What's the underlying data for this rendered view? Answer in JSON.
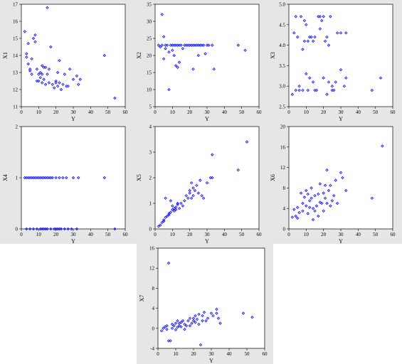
{
  "chart_data": [
    {
      "type": "scatter",
      "xlabel": "Y",
      "ylabel": "X1",
      "xlim": [
        0,
        60
      ],
      "ylim": [
        11,
        17
      ],
      "xticks": [
        0,
        10,
        20,
        30,
        40,
        50,
        60
      ],
      "yticks": [
        11,
        12,
        13,
        14,
        15,
        16,
        17
      ],
      "points": [
        [
          2,
          15.4
        ],
        [
          3,
          14.1
        ],
        [
          3,
          13.9
        ],
        [
          4,
          13.5
        ],
        [
          4,
          14.7
        ],
        [
          5,
          13.2
        ],
        [
          5,
          13.1
        ],
        [
          6,
          12.9
        ],
        [
          7,
          15
        ],
        [
          8,
          14.8
        ],
        [
          8,
          15.2
        ],
        [
          9,
          13.2
        ],
        [
          10,
          12.9
        ],
        [
          10,
          12.5
        ],
        [
          11,
          13
        ],
        [
          11,
          12.7
        ],
        [
          12,
          12.4
        ],
        [
          12,
          12.9
        ],
        [
          13,
          13.3
        ],
        [
          13,
          12.6
        ],
        [
          14,
          13.3
        ],
        [
          14,
          12.3
        ],
        [
          15,
          16.8
        ],
        [
          15,
          12.9
        ],
        [
          16,
          13.2
        ],
        [
          16,
          12.4
        ],
        [
          17,
          14.5
        ],
        [
          18,
          12.3
        ],
        [
          19,
          12.1
        ],
        [
          20,
          12.5
        ],
        [
          20,
          12.4
        ],
        [
          21,
          12.2
        ],
        [
          21,
          13
        ],
        [
          22,
          12.4
        ],
        [
          22,
          13.7
        ],
        [
          23,
          12
        ],
        [
          24,
          12.3
        ],
        [
          25,
          12.9
        ],
        [
          26,
          12.2
        ],
        [
          27,
          12.2
        ],
        [
          28,
          13.2
        ],
        [
          30,
          12.6
        ],
        [
          32,
          12.8
        ],
        [
          33,
          12.3
        ],
        [
          34,
          12.6
        ],
        [
          48,
          14
        ],
        [
          54,
          11.5
        ],
        [
          6,
          13.8
        ],
        [
          9,
          12.5
        ],
        [
          12,
          13.4
        ]
      ]
    },
    {
      "type": "scatter",
      "xlabel": "Y",
      "ylabel": "X2",
      "xlim": [
        0,
        60
      ],
      "ylim": [
        5,
        35
      ],
      "xticks": [
        0,
        10,
        20,
        30,
        40,
        50,
        60
      ],
      "yticks": [
        5,
        10,
        15,
        20,
        25,
        30,
        35
      ],
      "points": [
        [
          2,
          23
        ],
        [
          3,
          22.5
        ],
        [
          4,
          32
        ],
        [
          4,
          23
        ],
        [
          5,
          25.5
        ],
        [
          6,
          23
        ],
        [
          6,
          22
        ],
        [
          7,
          23
        ],
        [
          8,
          21
        ],
        [
          8,
          10
        ],
        [
          9,
          23
        ],
        [
          10,
          23
        ],
        [
          11,
          20
        ],
        [
          11,
          23
        ],
        [
          12,
          23
        ],
        [
          12,
          17
        ],
        [
          13,
          23
        ],
        [
          14,
          18
        ],
        [
          14,
          23
        ],
        [
          15,
          23
        ],
        [
          16,
          22
        ],
        [
          17,
          23
        ],
        [
          18,
          23
        ],
        [
          19,
          23
        ],
        [
          20,
          23
        ],
        [
          21,
          23
        ],
        [
          22,
          23
        ],
        [
          22,
          16
        ],
        [
          23,
          23
        ],
        [
          24,
          23
        ],
        [
          25,
          23
        ],
        [
          25,
          20
        ],
        [
          26,
          23
        ],
        [
          27,
          23
        ],
        [
          28,
          23
        ],
        [
          29,
          20.5
        ],
        [
          30,
          23
        ],
        [
          31,
          23
        ],
        [
          33,
          23
        ],
        [
          34,
          16
        ],
        [
          48,
          23
        ],
        [
          52,
          21.5
        ],
        [
          5,
          19
        ],
        [
          10,
          21.5
        ],
        [
          13,
          16.5
        ]
      ]
    },
    {
      "type": "scatter",
      "xlabel": "Y",
      "ylabel": "X3",
      "xlim": [
        0,
        60
      ],
      "ylim": [
        2.5,
        5.0
      ],
      "xticks": [
        0,
        10,
        20,
        30,
        40,
        50,
        60
      ],
      "yticks": [
        2.5,
        3.0,
        3.5,
        4.0,
        4.5,
        5.0
      ],
      "points": [
        [
          2,
          2.8
        ],
        [
          3,
          4.3
        ],
        [
          4,
          2.9
        ],
        [
          4,
          4.7
        ],
        [
          5,
          4.2
        ],
        [
          6,
          2.9
        ],
        [
          6,
          3
        ],
        [
          7,
          4.7
        ],
        [
          8,
          2.9
        ],
        [
          8,
          3.9
        ],
        [
          9,
          4.1
        ],
        [
          10,
          3.3
        ],
        [
          10,
          4.5
        ],
        [
          11,
          2.9
        ],
        [
          11,
          4.1
        ],
        [
          12,
          3.2
        ],
        [
          12,
          4.2
        ],
        [
          13,
          4.2
        ],
        [
          14,
          3.1
        ],
        [
          14,
          4.1
        ],
        [
          15,
          4.2
        ],
        [
          16,
          2.9
        ],
        [
          17,
          4.7
        ],
        [
          18,
          4.4
        ],
        [
          19,
          4.6
        ],
        [
          20,
          3.2
        ],
        [
          20,
          4.7
        ],
        [
          21,
          4.1
        ],
        [
          22,
          2.8
        ],
        [
          22,
          4.2
        ],
        [
          23,
          3.1
        ],
        [
          23,
          4.0
        ],
        [
          24,
          4.7
        ],
        [
          25,
          2.9
        ],
        [
          25,
          3.0
        ],
        [
          26,
          2.9
        ],
        [
          27,
          3.1
        ],
        [
          28,
          4.3
        ],
        [
          30,
          3.4
        ],
        [
          30,
          4.3
        ],
        [
          32,
          3.0
        ],
        [
          33,
          4.3
        ],
        [
          33,
          3.2
        ],
        [
          48,
          2.9
        ],
        [
          53,
          3.2
        ],
        [
          9,
          4.6
        ],
        [
          15,
          2.9
        ],
        [
          18,
          4.7
        ]
      ]
    },
    {
      "type": "scatter",
      "xlabel": "Y",
      "ylabel": "X4",
      "xlim": [
        0,
        60
      ],
      "ylim": [
        0,
        2
      ],
      "xticks": [
        0,
        10,
        20,
        30,
        40,
        50,
        60
      ],
      "yticks": [
        0,
        1,
        2
      ],
      "points": [
        [
          2,
          1
        ],
        [
          3,
          1
        ],
        [
          4,
          1
        ],
        [
          5,
          1
        ],
        [
          6,
          1
        ],
        [
          7,
          1
        ],
        [
          8,
          1
        ],
        [
          9,
          1
        ],
        [
          10,
          1
        ],
        [
          11,
          1
        ],
        [
          12,
          1
        ],
        [
          13,
          1
        ],
        [
          14,
          1
        ],
        [
          15,
          1
        ],
        [
          16,
          1
        ],
        [
          17,
          1
        ],
        [
          18,
          1
        ],
        [
          20,
          1
        ],
        [
          22,
          1
        ],
        [
          24,
          1
        ],
        [
          26,
          1
        ],
        [
          30,
          1
        ],
        [
          33,
          1
        ],
        [
          48,
          1
        ],
        [
          3,
          0
        ],
        [
          5,
          0
        ],
        [
          7,
          0
        ],
        [
          9,
          0
        ],
        [
          11,
          0
        ],
        [
          12,
          0
        ],
        [
          13,
          0
        ],
        [
          14,
          0
        ],
        [
          15,
          0
        ],
        [
          17,
          0
        ],
        [
          19,
          0
        ],
        [
          20,
          0
        ],
        [
          21,
          0
        ],
        [
          22,
          0
        ],
        [
          23,
          0
        ],
        [
          25,
          0
        ],
        [
          27,
          0
        ],
        [
          29,
          0
        ],
        [
          32,
          0
        ],
        [
          54,
          0
        ]
      ]
    },
    {
      "type": "scatter",
      "xlabel": "Y",
      "ylabel": "X5",
      "xlim": [
        0,
        60
      ],
      "ylim": [
        0,
        4
      ],
      "xticks": [
        0,
        10,
        20,
        30,
        40,
        50,
        60
      ],
      "yticks": [
        0,
        1,
        2,
        3,
        4
      ],
      "points": [
        [
          2,
          0.1
        ],
        [
          3,
          0.15
        ],
        [
          4,
          0.25
        ],
        [
          5,
          0.35
        ],
        [
          5,
          0.3
        ],
        [
          6,
          0.45
        ],
        [
          6,
          1.2
        ],
        [
          7,
          0.5
        ],
        [
          8,
          0.6
        ],
        [
          8,
          0.55
        ],
        [
          9,
          0.65
        ],
        [
          9,
          1.1
        ],
        [
          10,
          0.75
        ],
        [
          10,
          0.9
        ],
        [
          11,
          0.8
        ],
        [
          11,
          0.7
        ],
        [
          12,
          0.85
        ],
        [
          12,
          0.75
        ],
        [
          13,
          0.95
        ],
        [
          13,
          1.0
        ],
        [
          14,
          0.8
        ],
        [
          15,
          1.0
        ],
        [
          16,
          0.9
        ],
        [
          17,
          1.1
        ],
        [
          18,
          1.3
        ],
        [
          19,
          1.2
        ],
        [
          20,
          1.4
        ],
        [
          20,
          1.5
        ],
        [
          21,
          1.2
        ],
        [
          21,
          1.8
        ],
        [
          22,
          1.3
        ],
        [
          22,
          1.6
        ],
        [
          23,
          1.5
        ],
        [
          24,
          1.7
        ],
        [
          25,
          1.4
        ],
        [
          26,
          1.9
        ],
        [
          27,
          1.3
        ],
        [
          28,
          1.2
        ],
        [
          30,
          1.8
        ],
        [
          32,
          2.0
        ],
        [
          33,
          2.9
        ],
        [
          33,
          2.0
        ],
        [
          48,
          2.3
        ],
        [
          53,
          3.4
        ]
      ]
    },
    {
      "type": "scatter",
      "xlabel": "Y",
      "ylabel": "X6",
      "xlim": [
        0,
        60
      ],
      "ylim": [
        0,
        20
      ],
      "xticks": [
        0,
        10,
        20,
        30,
        40,
        50,
        60
      ],
      "yticks": [
        0,
        4,
        8,
        12,
        16,
        20
      ],
      "points": [
        [
          2,
          2.3
        ],
        [
          3,
          3.8
        ],
        [
          4,
          2.5
        ],
        [
          5,
          2.1
        ],
        [
          5,
          4.2
        ],
        [
          6,
          3.2
        ],
        [
          7,
          7
        ],
        [
          8,
          3.5
        ],
        [
          8,
          5
        ],
        [
          9,
          6.2
        ],
        [
          10,
          4.5
        ],
        [
          10,
          7.5
        ],
        [
          11,
          6.8
        ],
        [
          11,
          3
        ],
        [
          12,
          4.2
        ],
        [
          12,
          5.5
        ],
        [
          13,
          6
        ],
        [
          13,
          8
        ],
        [
          14,
          4
        ],
        [
          14,
          1.8
        ],
        [
          15,
          6.5
        ],
        [
          15,
          3.5
        ],
        [
          16,
          4.5
        ],
        [
          17,
          6.8
        ],
        [
          17,
          2.5
        ],
        [
          18,
          8.8
        ],
        [
          18,
          5.2
        ],
        [
          19,
          5
        ],
        [
          20,
          7
        ],
        [
          20,
          3.5
        ],
        [
          21,
          6
        ],
        [
          21,
          8.5
        ],
        [
          22,
          5
        ],
        [
          22,
          11.5
        ],
        [
          23,
          7.5
        ],
        [
          24,
          8.5
        ],
        [
          24,
          4.5
        ],
        [
          25,
          5.5
        ],
        [
          26,
          6.5
        ],
        [
          27,
          9.5
        ],
        [
          28,
          5
        ],
        [
          30,
          11
        ],
        [
          31,
          10
        ],
        [
          33,
          7.5
        ],
        [
          48,
          6
        ],
        [
          54,
          16.2
        ]
      ]
    },
    {
      "type": "scatter",
      "xlabel": "Y",
      "ylabel": "X7",
      "xlim": [
        0,
        60
      ],
      "ylim": [
        -4,
        16
      ],
      "xticks": [
        0,
        10,
        20,
        30,
        40,
        50,
        60
      ],
      "yticks": [
        -4,
        0,
        4,
        8,
        12,
        16
      ],
      "points": [
        [
          2,
          -0.5
        ],
        [
          3,
          0
        ],
        [
          4,
          0.3
        ],
        [
          5,
          0.5
        ],
        [
          5,
          -0.2
        ],
        [
          6,
          13
        ],
        [
          6,
          -2.5
        ],
        [
          7,
          -2.5
        ],
        [
          8,
          0
        ],
        [
          8,
          0.8
        ],
        [
          9,
          0.5
        ],
        [
          10,
          1
        ],
        [
          10,
          -0.3
        ],
        [
          11,
          1.5
        ],
        [
          11,
          0.2
        ],
        [
          12,
          1
        ],
        [
          12,
          0.5
        ],
        [
          13,
          1.2
        ],
        [
          13,
          0.3
        ],
        [
          14,
          1.5
        ],
        [
          15,
          0.8
        ],
        [
          15,
          -0.2
        ],
        [
          16,
          0.5
        ],
        [
          17,
          1.5
        ],
        [
          18,
          2
        ],
        [
          18,
          0.5
        ],
        [
          19,
          1
        ],
        [
          20,
          1.5
        ],
        [
          20,
          2
        ],
        [
          21,
          2.5
        ],
        [
          21,
          1.2
        ],
        [
          22,
          1.8
        ],
        [
          23,
          0.8
        ],
        [
          23,
          2.8
        ],
        [
          24,
          -3.3
        ],
        [
          25,
          2.5
        ],
        [
          25,
          1.5
        ],
        [
          26,
          3.2
        ],
        [
          27,
          1.5
        ],
        [
          28,
          2
        ],
        [
          30,
          3
        ],
        [
          31,
          2.5
        ],
        [
          33,
          3.8
        ],
        [
          33,
          3
        ],
        [
          34,
          2
        ],
        [
          48,
          3
        ],
        [
          53,
          2.2
        ],
        [
          35,
          1
        ]
      ]
    }
  ]
}
